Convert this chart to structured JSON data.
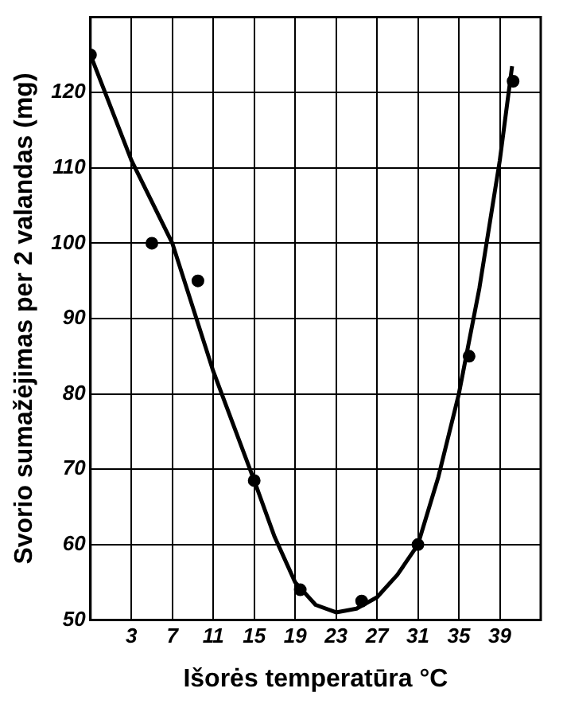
{
  "chart_data": {
    "type": "scatter",
    "xlabel": "Išorės temperatūra °C",
    "ylabel": "Svorio sumažėjimas per 2 valandas (mg)",
    "xlim": [
      -1,
      43
    ],
    "xticks": [
      3,
      7,
      11,
      15,
      19,
      23,
      27,
      31,
      35,
      39
    ],
    "ylim": [
      50,
      130
    ],
    "yticks": [
      50,
      60,
      70,
      80,
      90,
      100,
      110,
      120
    ],
    "grid": true,
    "legend": false,
    "marker": "circle",
    "series": [
      {
        "color": "#000000",
        "x": [
          -1,
          5,
          9.5,
          15,
          19.5,
          25.5,
          31,
          36,
          40.3
        ],
        "values": [
          125,
          100,
          95,
          68.5,
          54,
          52.5,
          60,
          85,
          121.5
        ]
      },
      {
        "type": "line",
        "color": "#000000",
        "marker": "none",
        "x": [
          -1,
          3,
          7,
          11,
          15,
          17,
          19,
          21,
          23,
          25,
          27,
          29,
          31,
          33,
          35,
          37,
          39,
          40.2
        ],
        "values": [
          125,
          111,
          100,
          83,
          68.5,
          61,
          55,
          52,
          51,
          51.5,
          53,
          56,
          60,
          69,
          80,
          94,
          111,
          123.5
        ]
      }
    ]
  }
}
